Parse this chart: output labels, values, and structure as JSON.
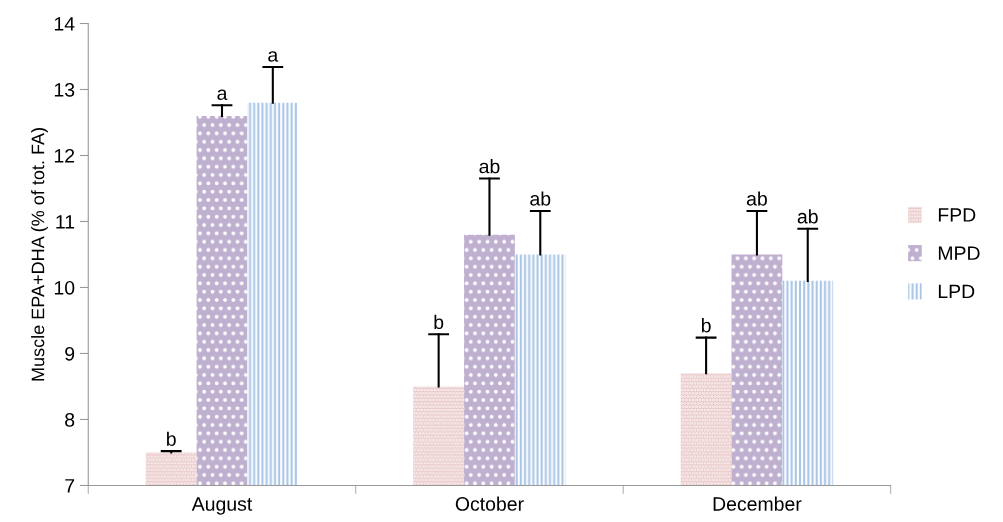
{
  "chart_data": {
    "type": "bar",
    "ylabel": "Muscle EPA+DHA (% of tot. FA)",
    "categories": [
      "August",
      "October",
      "December"
    ],
    "series": [
      {
        "name": "FPD",
        "color": "#e8c3c3",
        "values": [
          7.5,
          8.5,
          8.7
        ],
        "errors": [
          [
            7.5,
            7.52
          ],
          [
            8.5,
            9.29
          ],
          [
            8.7,
            9.24
          ]
        ],
        "value_labels": [
          "b",
          "b",
          "b"
        ]
      },
      {
        "name": "MPD",
        "color": "#c0b0d0",
        "values": [
          12.6,
          10.8,
          10.5
        ],
        "errors": [
          [
            12.6,
            12.76
          ],
          [
            10.8,
            11.65
          ],
          [
            10.5,
            11.16
          ]
        ],
        "value_labels": [
          "a",
          "ab",
          "ab"
        ]
      },
      {
        "name": "LPD",
        "color": "#a9c5e6",
        "values": [
          12.8,
          10.5,
          10.1
        ],
        "errors": [
          [
            12.8,
            13.34
          ],
          [
            10.5,
            11.16
          ],
          [
            10.1,
            10.89
          ]
        ],
        "value_labels": [
          "a",
          "ab",
          "ab"
        ]
      }
    ],
    "ylim": [
      7,
      14
    ],
    "yticks": [
      7,
      8,
      9,
      10,
      11,
      12,
      13,
      14
    ],
    "grid": false,
    "legend": "right"
  }
}
